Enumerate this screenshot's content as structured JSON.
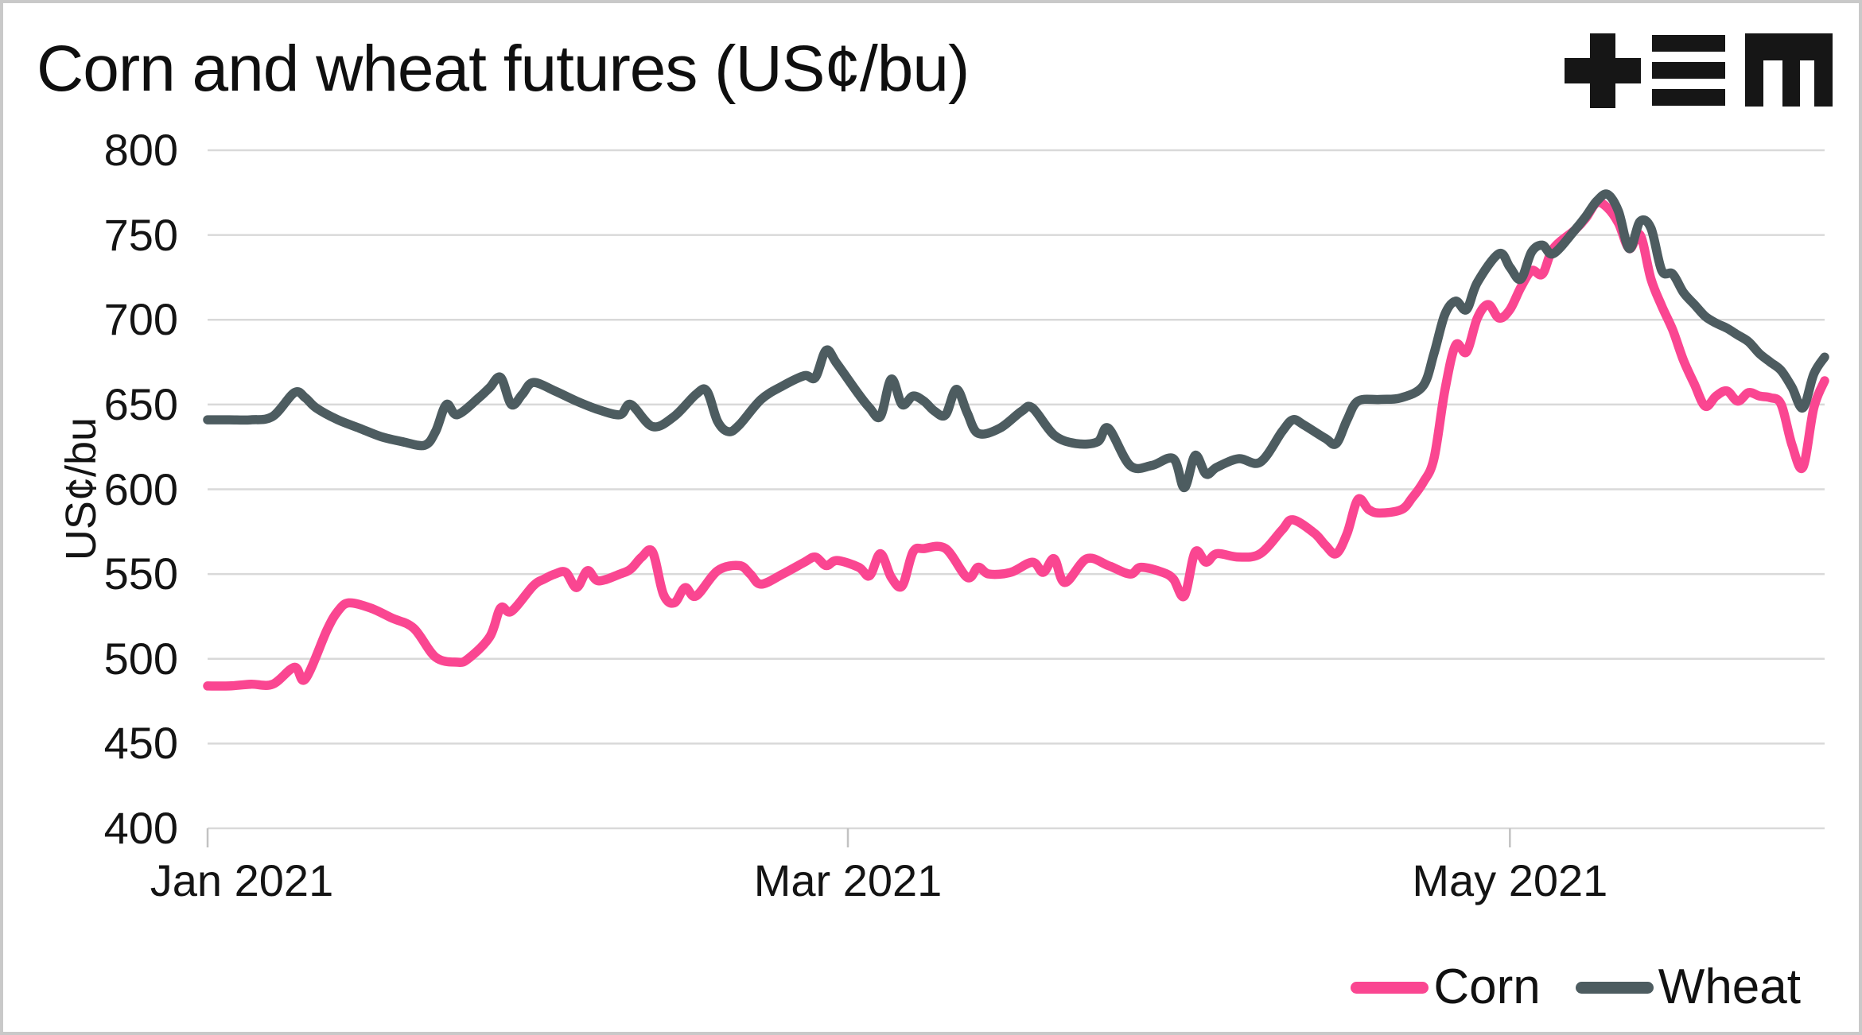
{
  "header": {
    "title": "Corn and wheat futures (US¢/bu)"
  },
  "logo": {
    "name": "plus-equals-m-logo",
    "color": "#161616"
  },
  "colors": {
    "background": "#ffffff",
    "frame_border": "#c9c9c9",
    "gridline": "#d9d9d9",
    "axis_tick": "#c2c2c2",
    "text": "#141414",
    "corn": "#FA4691",
    "wheat": "#4D5C60"
  },
  "chart_data": {
    "type": "line",
    "title": "Corn and wheat futures (US¢/bu)",
    "xlabel": "",
    "ylabel": "US¢/bu",
    "x_unit": "days since 2021-01-01",
    "x_range_days": [
      0,
      149
    ],
    "ylim": [
      400,
      800
    ],
    "y_ticks": [
      400,
      450,
      500,
      550,
      600,
      650,
      700,
      750,
      800
    ],
    "x_ticks": [
      {
        "day": 0,
        "label": "Jan 2021"
      },
      {
        "day": 59,
        "label": "Mar 2021"
      },
      {
        "day": 120,
        "label": "May 2021"
      }
    ],
    "grid": "horizontal",
    "legend_position": "bottom-right",
    "series": [
      {
        "name": "Corn",
        "color": "#FA4691",
        "points": [
          [
            0,
            484
          ],
          [
            2,
            484
          ],
          [
            4,
            485
          ],
          [
            6,
            485
          ],
          [
            8,
            495
          ],
          [
            9,
            488
          ],
          [
            11,
            517
          ],
          [
            12,
            528
          ],
          [
            13,
            533
          ],
          [
            15,
            530
          ],
          [
            17,
            524
          ],
          [
            19,
            518
          ],
          [
            21,
            501
          ],
          [
            23,
            498
          ],
          [
            24,
            500
          ],
          [
            26,
            513
          ],
          [
            27,
            530
          ],
          [
            28,
            528
          ],
          [
            30,
            543
          ],
          [
            31,
            547
          ],
          [
            32,
            550
          ],
          [
            33,
            551
          ],
          [
            34,
            542
          ],
          [
            35,
            552
          ],
          [
            36,
            546
          ],
          [
            38,
            550
          ],
          [
            39,
            553
          ],
          [
            40,
            560
          ],
          [
            41,
            563
          ],
          [
            42,
            538
          ],
          [
            43,
            533
          ],
          [
            44,
            542
          ],
          [
            45,
            537
          ],
          [
            47,
            552
          ],
          [
            49,
            555
          ],
          [
            50,
            550
          ],
          [
            51,
            544
          ],
          [
            53,
            550
          ],
          [
            55,
            557
          ],
          [
            56,
            560
          ],
          [
            57,
            555
          ],
          [
            58,
            558
          ],
          [
            60,
            554
          ],
          [
            61,
            549
          ],
          [
            62,
            562
          ],
          [
            63,
            548
          ],
          [
            64,
            543
          ],
          [
            65,
            563
          ],
          [
            66,
            565
          ],
          [
            68,
            565
          ],
          [
            70,
            548
          ],
          [
            71,
            554
          ],
          [
            72,
            550
          ],
          [
            74,
            551
          ],
          [
            76,
            557
          ],
          [
            77,
            551
          ],
          [
            78,
            559
          ],
          [
            79,
            545
          ],
          [
            81,
            559
          ],
          [
            83,
            555
          ],
          [
            85,
            550
          ],
          [
            86,
            554
          ],
          [
            88,
            551
          ],
          [
            89,
            547
          ],
          [
            90,
            537
          ],
          [
            91,
            563
          ],
          [
            92,
            557
          ],
          [
            93,
            562
          ],
          [
            95,
            560
          ],
          [
            97,
            562
          ],
          [
            99,
            576
          ],
          [
            100,
            582
          ],
          [
            102,
            574
          ],
          [
            103,
            567
          ],
          [
            104,
            562
          ],
          [
            105,
            574
          ],
          [
            106,
            594
          ],
          [
            107,
            588
          ],
          [
            108,
            586
          ],
          [
            110,
            588
          ],
          [
            111,
            595
          ],
          [
            112,
            604
          ],
          [
            113,
            618
          ],
          [
            114,
            658
          ],
          [
            115,
            685
          ],
          [
            116,
            681
          ],
          [
            117,
            701
          ],
          [
            118,
            709
          ],
          [
            119,
            701
          ],
          [
            120,
            706
          ],
          [
            121,
            719
          ],
          [
            122,
            729
          ],
          [
            123,
            727
          ],
          [
            124,
            742
          ],
          [
            126,
            753
          ],
          [
            127,
            760
          ],
          [
            128,
            769
          ],
          [
            129,
            766
          ],
          [
            130,
            757
          ],
          [
            131,
            742
          ],
          [
            132,
            750
          ],
          [
            133,
            724
          ],
          [
            134,
            708
          ],
          [
            135,
            694
          ],
          [
            136,
            676
          ],
          [
            137,
            662
          ],
          [
            138,
            649
          ],
          [
            139,
            655
          ],
          [
            140,
            658
          ],
          [
            141,
            652
          ],
          [
            142,
            657
          ],
          [
            143,
            655
          ],
          [
            144,
            654
          ],
          [
            145,
            650
          ],
          [
            146,
            626
          ],
          [
            147,
            613
          ],
          [
            148,
            648
          ],
          [
            149,
            664
          ]
        ]
      },
      {
        "name": "Wheat",
        "color": "#4D5C60",
        "points": [
          [
            0,
            641
          ],
          [
            2,
            641
          ],
          [
            4,
            641
          ],
          [
            6,
            643
          ],
          [
            8,
            657
          ],
          [
            9,
            654
          ],
          [
            10,
            648
          ],
          [
            12,
            641
          ],
          [
            14,
            636
          ],
          [
            16,
            631
          ],
          [
            18,
            628
          ],
          [
            20,
            626
          ],
          [
            21,
            634
          ],
          [
            22,
            650
          ],
          [
            23,
            644
          ],
          [
            25,
            654
          ],
          [
            26,
            660
          ],
          [
            27,
            666
          ],
          [
            28,
            650
          ],
          [
            29,
            656
          ],
          [
            30,
            663
          ],
          [
            32,
            658
          ],
          [
            34,
            652
          ],
          [
            36,
            647
          ],
          [
            38,
            644
          ],
          [
            39,
            650
          ],
          [
            41,
            637
          ],
          [
            43,
            643
          ],
          [
            45,
            656
          ],
          [
            46,
            658
          ],
          [
            47,
            640
          ],
          [
            48,
            634
          ],
          [
            49,
            638
          ],
          [
            51,
            653
          ],
          [
            53,
            661
          ],
          [
            55,
            667
          ],
          [
            56,
            666
          ],
          [
            57,
            682
          ],
          [
            58,
            674
          ],
          [
            60,
            656
          ],
          [
            61,
            648
          ],
          [
            62,
            643
          ],
          [
            63,
            665
          ],
          [
            64,
            650
          ],
          [
            65,
            655
          ],
          [
            66,
            652
          ],
          [
            67,
            646
          ],
          [
            68,
            644
          ],
          [
            69,
            659
          ],
          [
            70,
            645
          ],
          [
            71,
            633
          ],
          [
            73,
            636
          ],
          [
            75,
            646
          ],
          [
            76,
            648
          ],
          [
            78,
            632
          ],
          [
            80,
            627
          ],
          [
            82,
            628
          ],
          [
            83,
            636
          ],
          [
            85,
            614
          ],
          [
            87,
            614
          ],
          [
            89,
            618
          ],
          [
            90,
            601
          ],
          [
            91,
            620
          ],
          [
            92,
            609
          ],
          [
            93,
            613
          ],
          [
            95,
            618
          ],
          [
            97,
            616
          ],
          [
            99,
            634
          ],
          [
            100,
            641
          ],
          [
            101,
            638
          ],
          [
            103,
            630
          ],
          [
            104,
            627
          ],
          [
            105,
            641
          ],
          [
            106,
            652
          ],
          [
            108,
            653
          ],
          [
            110,
            654
          ],
          [
            112,
            661
          ],
          [
            113,
            680
          ],
          [
            114,
            703
          ],
          [
            115,
            711
          ],
          [
            116,
            706
          ],
          [
            117,
            722
          ],
          [
            119,
            739
          ],
          [
            120,
            731
          ],
          [
            121,
            724
          ],
          [
            122,
            740
          ],
          [
            123,
            744
          ],
          [
            124,
            739
          ],
          [
            126,
            753
          ],
          [
            127,
            761
          ],
          [
            128,
            770
          ],
          [
            129,
            774
          ],
          [
            130,
            764
          ],
          [
            131,
            742
          ],
          [
            132,
            758
          ],
          [
            133,
            754
          ],
          [
            134,
            729
          ],
          [
            135,
            727
          ],
          [
            136,
            716
          ],
          [
            137,
            709
          ],
          [
            138,
            702
          ],
          [
            139,
            698
          ],
          [
            140,
            695
          ],
          [
            141,
            691
          ],
          [
            142,
            687
          ],
          [
            143,
            680
          ],
          [
            144,
            675
          ],
          [
            145,
            670
          ],
          [
            146,
            660
          ],
          [
            147,
            648
          ],
          [
            148,
            668
          ],
          [
            149,
            678
          ]
        ]
      }
    ]
  }
}
